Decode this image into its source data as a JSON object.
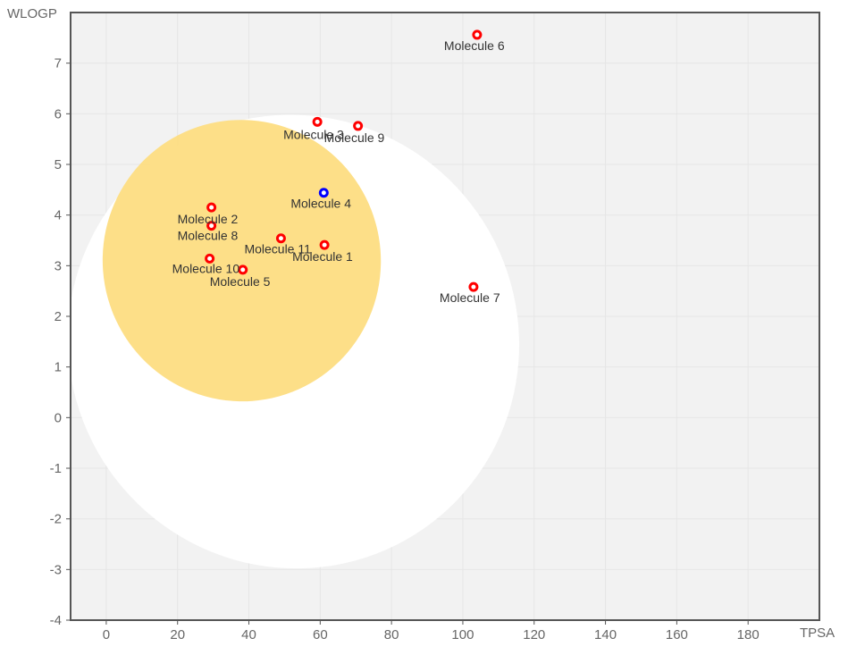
{
  "chart_data": {
    "type": "scatter",
    "title": "",
    "xlabel": "TPSA",
    "ylabel": "WLOGP",
    "xlim": [
      -10,
      200
    ],
    "ylim": [
      -4,
      8
    ],
    "x_ticks": [
      0,
      20,
      40,
      60,
      80,
      100,
      120,
      140,
      160,
      180
    ],
    "y_ticks": [
      -4,
      -3,
      -2,
      -1,
      0,
      1,
      2,
      3,
      4,
      5,
      6,
      7
    ],
    "grid": true,
    "colors": {
      "plot_background": "#f2f2f2",
      "white_region": "#ffffff",
      "yolk_region": "#fddd82",
      "red_point": "#ff0000",
      "blue_point": "#0000ff",
      "grid": "#e6e6e6",
      "frame": "#555555"
    },
    "regions": [
      {
        "name": "white",
        "shape": "ellipse",
        "cx": 52.5,
        "cy": 1.5,
        "rx": 63,
        "ry": 4.5,
        "rotation_deg": -35
      },
      {
        "name": "yolk",
        "shape": "ellipse",
        "cx": 38,
        "cy": 3.1,
        "rx": 39,
        "ry": 2.78,
        "rotation_deg": -10
      }
    ],
    "points": [
      {
        "label": "Molecule 1",
        "x": 61.2,
        "y": 3.41,
        "color": "red"
      },
      {
        "label": "Molecule 2",
        "x": 29.5,
        "y": 4.15,
        "color": "red"
      },
      {
        "label": "Molecule 3",
        "x": 59.2,
        "y": 5.84,
        "color": "red"
      },
      {
        "label": "Molecule 4",
        "x": 61.0,
        "y": 4.44,
        "color": "blue"
      },
      {
        "label": "Molecule 5",
        "x": 38.3,
        "y": 2.92,
        "color": "red"
      },
      {
        "label": "Molecule 6",
        "x": 104.0,
        "y": 7.56,
        "color": "red"
      },
      {
        "label": "Molecule 7",
        "x": 103.0,
        "y": 2.58,
        "color": "red"
      },
      {
        "label": "Molecule 8",
        "x": 29.5,
        "y": 3.79,
        "color": "red"
      },
      {
        "label": "Molecule 9",
        "x": 70.6,
        "y": 5.76,
        "color": "red"
      },
      {
        "label": "Molecule 10",
        "x": 29.0,
        "y": 3.14,
        "color": "red"
      },
      {
        "label": "Molecule 11",
        "x": 49.0,
        "y": 3.54,
        "color": "red"
      }
    ]
  }
}
